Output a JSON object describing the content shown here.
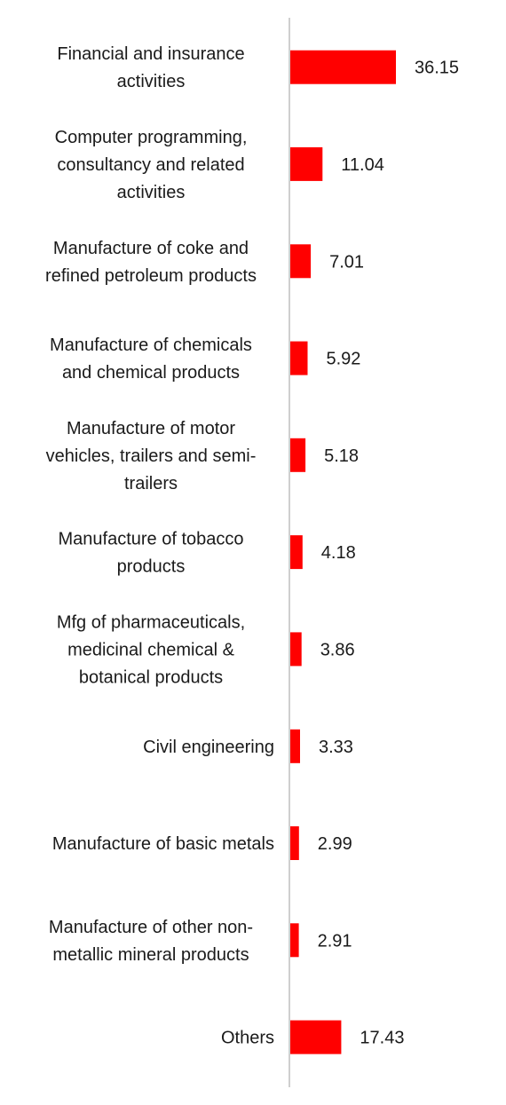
{
  "chart_data": {
    "type": "bar",
    "orientation": "horizontal",
    "categories": [
      [
        "Financial and insurance",
        "activities"
      ],
      [
        "Computer programming,",
        "consultancy and related",
        "activities"
      ],
      [
        "Manufacture of coke and",
        "refined petroleum products"
      ],
      [
        "Manufacture of chemicals",
        "and chemical products"
      ],
      [
        "Manufacture of motor",
        "vehicles, trailers and semi-",
        "trailers"
      ],
      [
        "Manufacture of tobacco",
        "products"
      ],
      [
        "Mfg of pharmaceuticals,",
        "medicinal chemical &",
        "botanical products"
      ],
      [
        "Civil engineering"
      ],
      [
        "Manufacture of basic metals"
      ],
      [
        "Manufacture of other non-",
        "metallic mineral products"
      ],
      [
        "Others"
      ]
    ],
    "values": [
      36.15,
      11.04,
      7.01,
      5.92,
      5.18,
      4.18,
      3.86,
      3.33,
      2.99,
      2.91,
      17.43
    ],
    "value_labels": [
      "36.15",
      "11.04",
      "7.01",
      "5.92",
      "5.18",
      "4.18",
      "3.86",
      "3.33",
      "2.99",
      "2.91",
      "17.43"
    ],
    "bar_color": "#ff0000",
    "axis_color": "#cfcfcf",
    "xlim": [
      0,
      36.15
    ],
    "grid": false,
    "legend": "none",
    "title": "",
    "xlabel": "",
    "ylabel": ""
  }
}
